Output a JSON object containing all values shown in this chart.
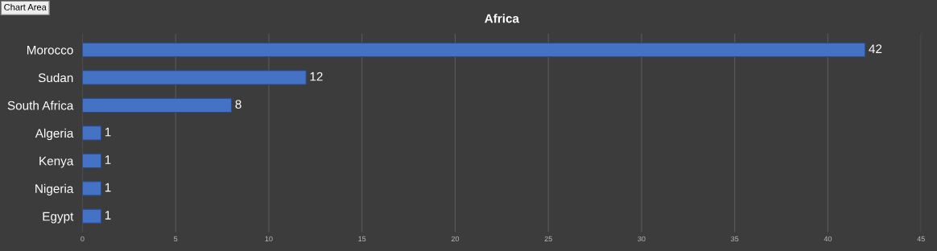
{
  "chart_data": {
    "type": "bar",
    "orientation": "horizontal",
    "title": "Africa",
    "categories": [
      "Morocco",
      "Sudan",
      "South Africa",
      "Algeria",
      "Kenya",
      "Nigeria",
      "Egypt"
    ],
    "values": [
      42,
      12,
      8,
      1,
      1,
      1,
      1
    ],
    "color": "#4472c4",
    "data_labels": true,
    "xlim": [
      0,
      45
    ],
    "xticks": [
      0,
      5,
      10,
      15,
      20,
      25,
      30,
      35,
      40,
      45
    ],
    "grid": "x",
    "annotations": [
      "Chart Area"
    ]
  }
}
